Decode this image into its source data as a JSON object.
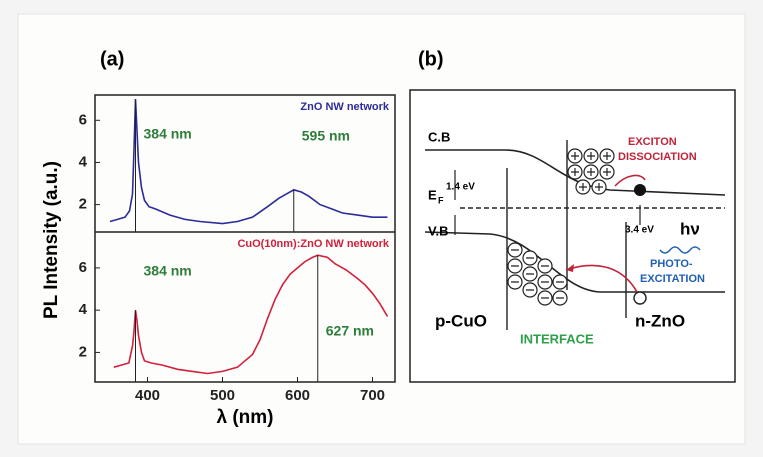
{
  "chart_data": [
    {
      "type": "line",
      "panel": "(a)",
      "ylabel": "PL Intensity (a.u.)",
      "xlim": [
        330,
        730
      ],
      "ylim": [
        0.7,
        7.2
      ],
      "yticks": [
        2,
        4,
        6
      ],
      "x": [
        350,
        360,
        370,
        376,
        380,
        382,
        384,
        386,
        388,
        392,
        396,
        402,
        410,
        430,
        450,
        470,
        500,
        520,
        540,
        560,
        575,
        585,
        595,
        605,
        615,
        630,
        645,
        660,
        680,
        700,
        720
      ],
      "series": [
        {
          "name": "ZnO NW network",
          "color": "#2b2b9a",
          "values": [
            1.2,
            1.3,
            1.4,
            1.7,
            2.5,
            4.6,
            7.0,
            5.5,
            4.0,
            2.8,
            2.2,
            1.9,
            1.8,
            1.5,
            1.3,
            1.2,
            1.1,
            1.2,
            1.4,
            1.9,
            2.3,
            2.5,
            2.7,
            2.6,
            2.4,
            2.0,
            1.8,
            1.6,
            1.5,
            1.4,
            1.4
          ]
        }
      ],
      "annotations": [
        {
          "text": "384 nm",
          "x": 384
        },
        {
          "text": "595 nm",
          "x": 595
        }
      ]
    },
    {
      "type": "line",
      "xlabel": "λ (nm)",
      "xlim": [
        330,
        730
      ],
      "ylim": [
        0.6,
        7.7
      ],
      "xticks": [
        400,
        500,
        600,
        700
      ],
      "yticks": [
        2,
        4,
        6
      ],
      "x": [
        355,
        365,
        375,
        380,
        382,
        384,
        386,
        388,
        392,
        396,
        405,
        420,
        440,
        460,
        480,
        500,
        520,
        540,
        550,
        560,
        570,
        580,
        590,
        600,
        610,
        620,
        627,
        640,
        650,
        665,
        680,
        690,
        700,
        710,
        720
      ],
      "series": [
        {
          "name": "CuO(10nm):ZnO NW network",
          "color": "#d3203c",
          "values": [
            1.3,
            1.4,
            1.5,
            2.3,
            3.0,
            4.0,
            3.5,
            2.8,
            2.0,
            1.6,
            1.5,
            1.4,
            1.2,
            1.1,
            1.0,
            1.1,
            1.3,
            1.9,
            2.6,
            3.6,
            4.5,
            5.2,
            5.7,
            6.0,
            6.3,
            6.5,
            6.6,
            6.5,
            6.2,
            5.9,
            5.5,
            5.2,
            4.8,
            4.3,
            3.7
          ]
        }
      ],
      "annotations": [
        {
          "text": "384 nm",
          "x": 384
        },
        {
          "text": "627 nm",
          "x": 627
        }
      ]
    }
  ],
  "diagram": {
    "panel": "(b)",
    "cb": "C.B",
    "vb": "V.B",
    "ef": "E",
    "ef_sub": "F",
    "gap1": "1.4 eV",
    "gap2": "3.4 eV",
    "photon": "hν",
    "exciton": [
      "EXCITON",
      "DISSOCIATION"
    ],
    "photo": [
      "PHOTO-",
      "EXCITATION"
    ],
    "left": "p-CuO",
    "right": "n-ZnO",
    "interface": "INTERFACE"
  }
}
